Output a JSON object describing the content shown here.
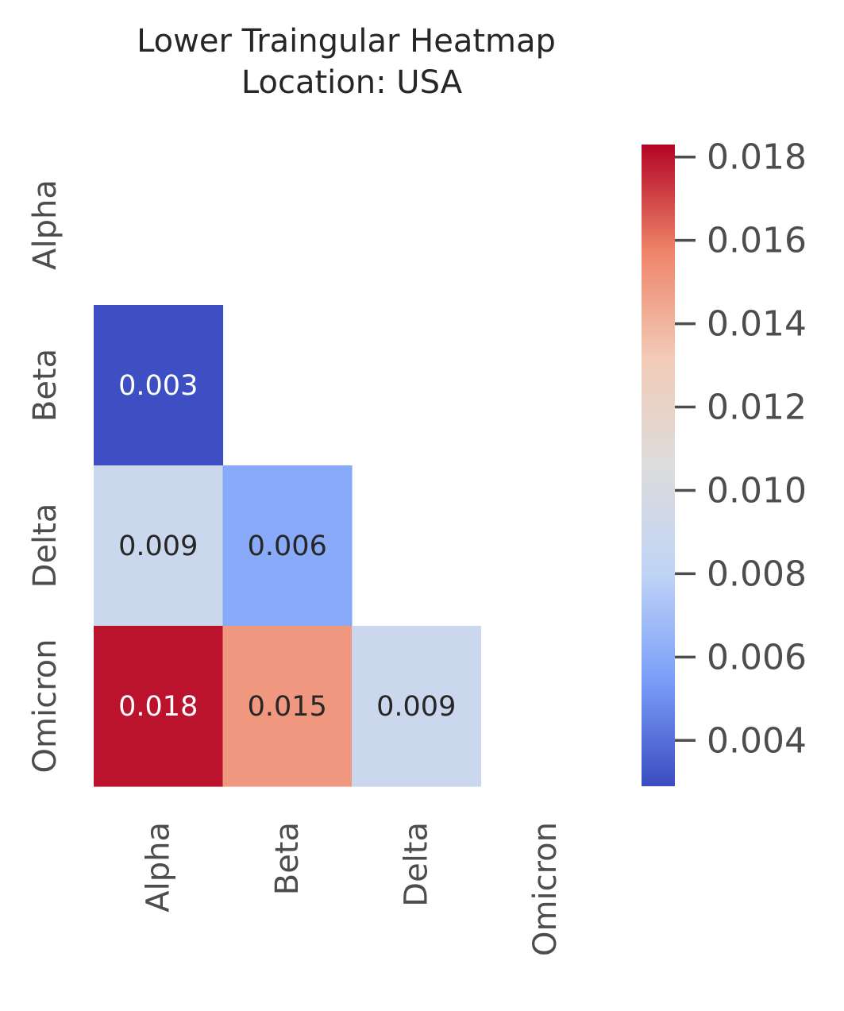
{
  "chart_data": {
    "type": "heatmap",
    "title": "Lower Traingular Heatmap",
    "subtitle": "Location: USA",
    "x_categories": [
      "Alpha",
      "Beta",
      "Delta",
      "Omicron"
    ],
    "y_categories": [
      "Alpha",
      "Beta",
      "Delta",
      "Omicron"
    ],
    "mask": "upper triangle including diagonal",
    "cells": [
      {
        "row": "Beta",
        "col": "Alpha",
        "value": 0.003,
        "label": "0.003"
      },
      {
        "row": "Delta",
        "col": "Alpha",
        "value": 0.009,
        "label": "0.009"
      },
      {
        "row": "Delta",
        "col": "Beta",
        "value": 0.006,
        "label": "0.006"
      },
      {
        "row": "Omicron",
        "col": "Alpha",
        "value": 0.018,
        "label": "0.018"
      },
      {
        "row": "Omicron",
        "col": "Beta",
        "value": 0.015,
        "label": "0.015"
      },
      {
        "row": "Omicron",
        "col": "Delta",
        "value": 0.009,
        "label": "0.009"
      }
    ],
    "colormap": "coolwarm",
    "colormap_colors": [
      "#3b4cc0",
      "#7b9ff9",
      "#c0d4f5",
      "#dddcdc",
      "#f2cbb7",
      "#ee8468",
      "#b40426"
    ],
    "colorbar": {
      "range": [
        0.0029,
        0.0183
      ],
      "ticks": [
        0.004,
        0.006,
        0.008,
        0.01,
        0.012,
        0.014,
        0.016,
        0.018
      ],
      "tick_labels": [
        "0.004",
        "0.006",
        "0.008",
        "0.010",
        "0.012",
        "0.014",
        "0.016",
        "0.018"
      ]
    },
    "grid": false
  }
}
